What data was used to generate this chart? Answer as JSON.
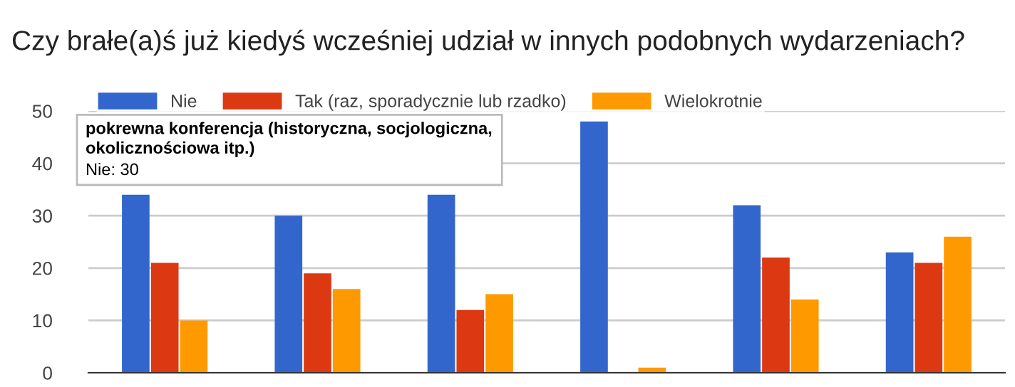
{
  "chart_data": {
    "type": "bar",
    "title": "Czy brałe(a)ś już kiedyś wcześniej udział w innych podobnych wydarzeniach?",
    "categories": [
      null,
      null,
      null,
      null,
      null,
      null
    ],
    "series": [
      {
        "name": "Nie",
        "color": "#3366cc",
        "values": [
          34,
          30,
          34,
          48,
          32,
          23
        ]
      },
      {
        "name": "Tak (raz, sporadycznie lub rzadko)",
        "color": "#dc3912",
        "values": [
          21,
          19,
          12,
          0,
          22,
          21
        ]
      },
      {
        "name": "Wielokrotnie",
        "color": "#ff9900",
        "values": [
          10,
          16,
          15,
          1,
          14,
          26
        ]
      }
    ],
    "annotations": [
      "pokrewna konferencja (historyczna, socjologiczna, okolicznościowa itp.)",
      "Nie: 30"
    ],
    "ylim": [
      0,
      50
    ],
    "yticks": [
      0,
      10,
      20,
      30,
      40,
      50
    ],
    "grid": "y",
    "legend": "top left",
    "tick_labels": "y"
  }
}
